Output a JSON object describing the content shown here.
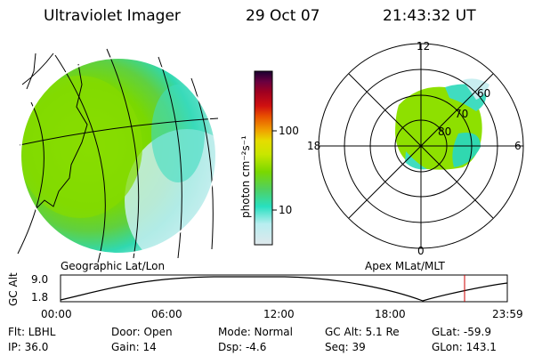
{
  "header": {
    "title": "Ultraviolet Imager",
    "date": "29 Oct 07",
    "time": "21:43:32 UT"
  },
  "geo_panel": {
    "label": "Geographic Lat/Lon"
  },
  "polar_panel": {
    "label": "Apex  MLat/MLT",
    "mlt_labels": {
      "top": "12",
      "left": "18",
      "right": "6",
      "bottom": "0"
    },
    "mlat_labels": [
      "60",
      "70",
      "80"
    ]
  },
  "colorbar": {
    "unit_label": "photon cm⁻²s⁻¹",
    "ticks": [
      "100",
      "10"
    ],
    "colors": [
      "#1a0030",
      "#3a0050",
      "#6a0040",
      "#a00020",
      "#d01010",
      "#e85000",
      "#f0a000",
      "#e6dc00",
      "#c8e600",
      "#9ee600",
      "#7ad800",
      "#50d060",
      "#28e0c0",
      "#60e8e0",
      "#b8eef0",
      "#dfe8ec"
    ]
  },
  "altitude_track": {
    "ylabel": "GC Alt",
    "ytick_top": "9.0",
    "ytick_bottom": "1.8",
    "xticks": [
      "00:00",
      "06:00",
      "12:00",
      "18:00",
      "23:59"
    ],
    "marker_color": "#cc0000"
  },
  "footer": {
    "filter": "Flt: LBHL",
    "door": "Door: Open",
    "mode": "Mode: Normal",
    "gc_alt": "GC Alt: 5.1 Re",
    "glat": "GLat:  -59.9",
    "ip": "IP: 36.0",
    "gain": "Gain: 14",
    "dsp": "Dsp:    -4.6",
    "seq": "Seq: 39",
    "glon": "GLon: 143.1"
  }
}
